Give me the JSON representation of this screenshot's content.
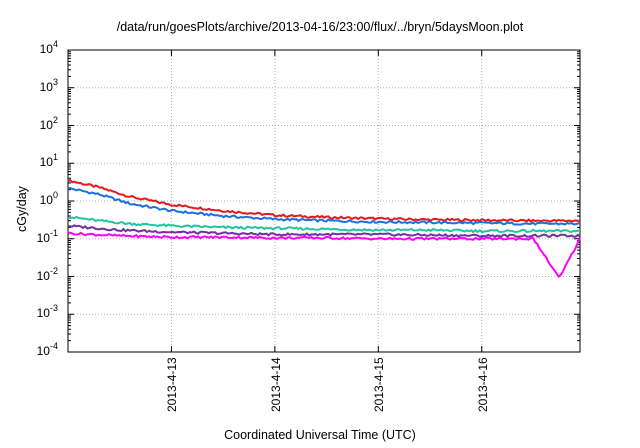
{
  "chart_data": {
    "type": "line",
    "title": "/data/run/goesPlots/archive/2013-04-16/23:00/flux/../bryn/5daysMoon.plot",
    "xlabel": "Coordinated Universal Time (UTC)",
    "ylabel": "cGy/day",
    "yscale": "log",
    "ylim": [
      0.0001,
      10000
    ],
    "xlim": [
      0,
      4.95
    ],
    "grid": true,
    "y_ticks": [
      {
        "base": "10",
        "exp": "-4",
        "value": 0.0001
      },
      {
        "base": "10",
        "exp": "-3",
        "value": 0.001
      },
      {
        "base": "10",
        "exp": "-2",
        "value": 0.01
      },
      {
        "base": "10",
        "exp": "-1",
        "value": 0.1
      },
      {
        "base": "10",
        "exp": "0",
        "value": 1
      },
      {
        "base": "10",
        "exp": "1",
        "value": 10
      },
      {
        "base": "10",
        "exp": "2",
        "value": 100
      },
      {
        "base": "10",
        "exp": "3",
        "value": 1000
      },
      {
        "base": "10",
        "exp": "4",
        "value": 10000
      }
    ],
    "x_ticks": [
      {
        "label": "2013-4-13",
        "value": 1
      },
      {
        "label": "2013-4-14",
        "value": 2
      },
      {
        "label": "2013-4-15",
        "value": 3
      },
      {
        "label": "2013-4-16",
        "value": 4
      }
    ],
    "series": [
      {
        "color": "#e41a1c",
        "x": [
          0,
          0.3,
          0.6,
          1.0,
          1.5,
          2.0,
          2.5,
          3.0,
          3.5,
          4.0,
          4.5,
          4.95
        ],
        "values": [
          3.5,
          2.3,
          1.3,
          0.8,
          0.55,
          0.42,
          0.37,
          0.34,
          0.32,
          0.31,
          0.3,
          0.3
        ]
      },
      {
        "color": "#1e6fe0",
        "x": [
          0,
          0.3,
          0.6,
          1.0,
          1.5,
          2.0,
          2.5,
          3.0,
          3.5,
          4.0,
          4.5,
          4.95
        ],
        "values": [
          2.2,
          1.5,
          0.85,
          0.55,
          0.4,
          0.33,
          0.3,
          0.28,
          0.27,
          0.26,
          0.25,
          0.25
        ]
      },
      {
        "color": "#20c4a0",
        "x": [
          0,
          0.3,
          0.6,
          1.0,
          1.5,
          2.0,
          2.5,
          3.0,
          3.5,
          4.0,
          4.5,
          4.95
        ],
        "values": [
          0.38,
          0.3,
          0.25,
          0.22,
          0.2,
          0.19,
          0.18,
          0.17,
          0.17,
          0.16,
          0.16,
          0.16
        ]
      },
      {
        "color": "#7030a0",
        "x": [
          0,
          0.5,
          1.0,
          1.5,
          2.0,
          2.5,
          3.0,
          3.5,
          4.0,
          4.5,
          4.95
        ],
        "values": [
          0.22,
          0.17,
          0.15,
          0.14,
          0.13,
          0.13,
          0.13,
          0.125,
          0.12,
          0.12,
          0.12
        ]
      },
      {
        "color": "#ff00ff",
        "x": [
          0,
          0.5,
          1.0,
          1.5,
          2.0,
          2.5,
          3.0,
          3.5,
          4.0,
          4.5,
          4.75,
          4.95
        ],
        "values": [
          0.14,
          0.12,
          0.11,
          0.11,
          0.105,
          0.105,
          0.1,
          0.1,
          0.1,
          0.1,
          0.009,
          0.1
        ]
      }
    ]
  }
}
